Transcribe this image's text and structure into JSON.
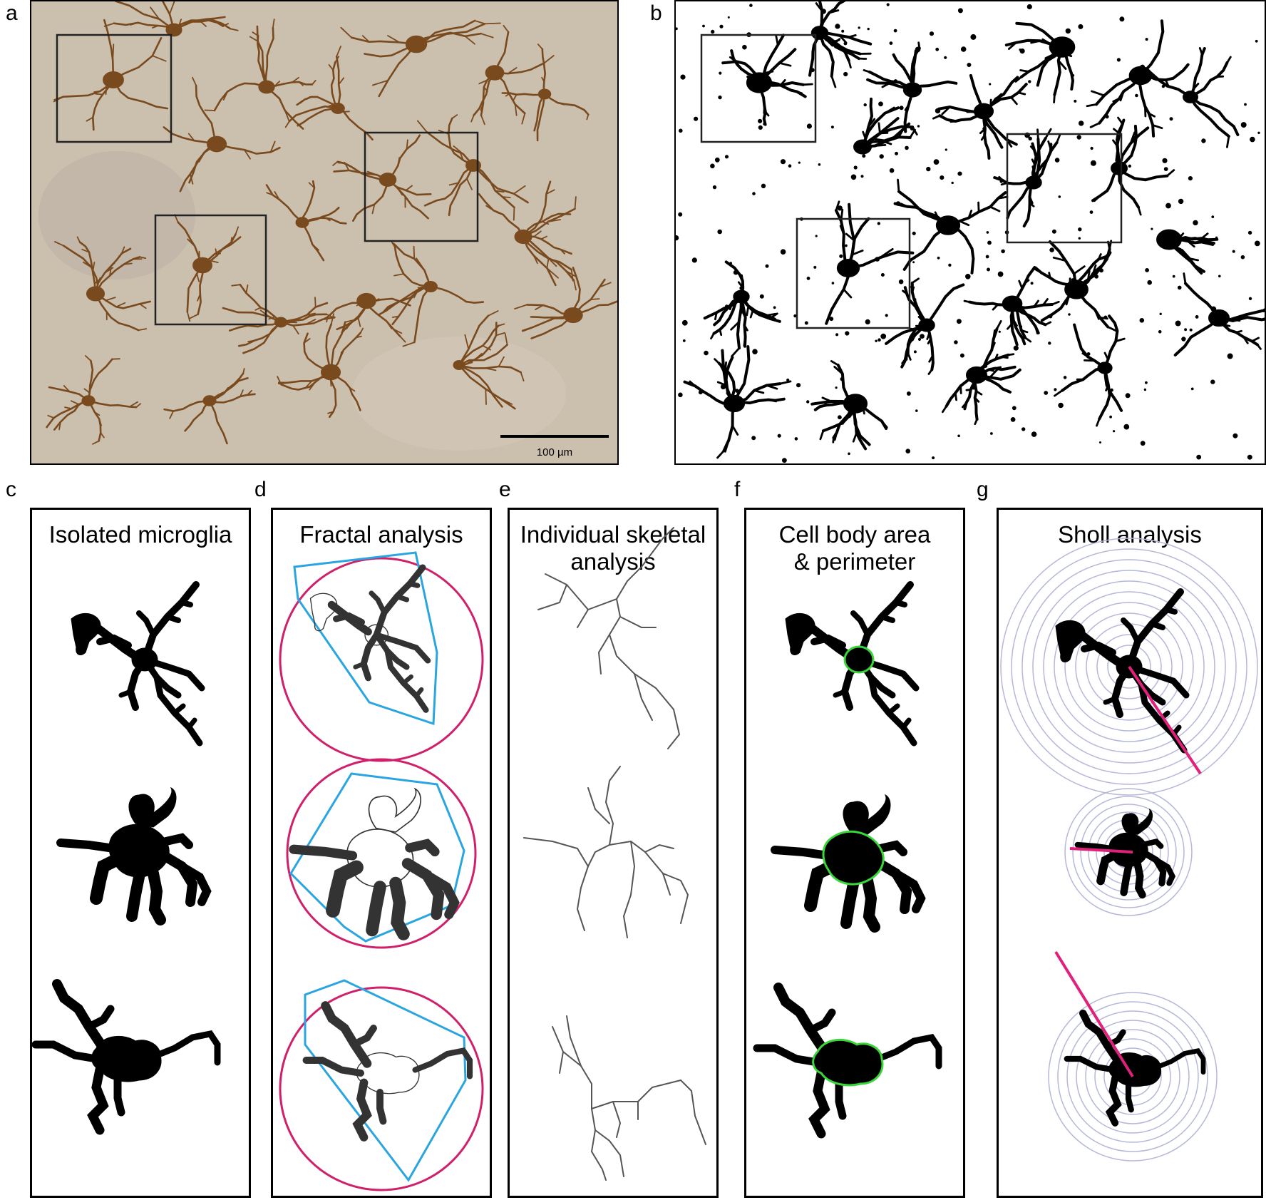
{
  "panels": {
    "a": {
      "label": "a",
      "scale_bar_text": "100 µm"
    },
    "b": {
      "label": "b"
    },
    "c": {
      "label": "c",
      "title": "Isolated microglia"
    },
    "d": {
      "label": "d",
      "title": "Fractal analysis"
    },
    "e": {
      "label": "e",
      "title_line1": "Individual skeletal",
      "title_line2": "analysis"
    },
    "f": {
      "label": "f",
      "title_line1": "Cell body area",
      "title_line2": "& perimeter"
    },
    "g": {
      "label": "g",
      "title": "Sholl analysis"
    }
  },
  "colors": {
    "stain": "#7a4a1f",
    "tissue_background": "#cbbfae",
    "hull": "#2aa5e0",
    "bounding_circle": "#d0206a",
    "cell_body_outline": "#39d639",
    "sholl_ring": "#b5b8d8",
    "sholl_radius": "#e0207a"
  }
}
